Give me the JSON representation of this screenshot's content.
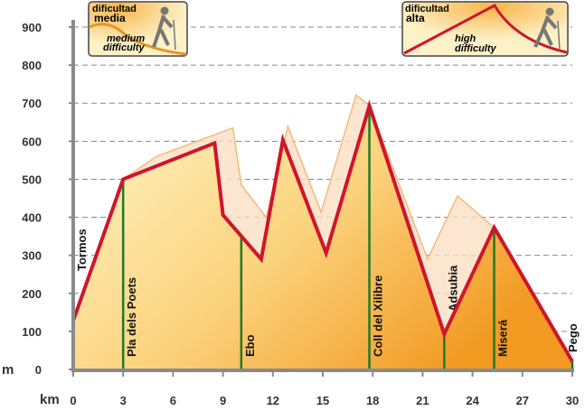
{
  "chart_data": {
    "type": "area",
    "x_unit": "km",
    "y_unit": "m",
    "xlim": [
      0,
      30
    ],
    "ylim": [
      0,
      900
    ],
    "xticks": [
      0,
      3,
      6,
      9,
      12,
      15,
      18,
      21,
      24,
      27,
      30
    ],
    "yticks": [
      0,
      100,
      200,
      300,
      400,
      500,
      600,
      700,
      800,
      900
    ],
    "grid": true,
    "series": [
      {
        "color": "#d0142c",
        "x": [
          0,
          3,
          8.5,
          9,
          11.3,
          12.6,
          15.2,
          17.8,
          22.3,
          25.3,
          30
        ],
        "values": [
          128,
          500,
          595,
          406,
          290,
          603,
          306,
          693,
          93,
          373,
          21
        ]
      },
      {
        "color": "#f5b97a",
        "x": [
          0,
          3,
          5,
          9.6,
          10.1,
          11.6,
          12.9,
          14.9,
          17,
          17.8,
          21.3,
          23.1,
          25.3,
          30
        ],
        "values": [
          128,
          500,
          560,
          635,
          485,
          400,
          639,
          413,
          722,
          693,
          290,
          456,
          373,
          21
        ]
      }
    ],
    "stations": [
      {
        "label": "Tormos",
        "km": 0,
        "elevation": 128
      },
      {
        "label": "Pla dels Poets",
        "km": 3,
        "elevation": 500
      },
      {
        "label": "Ebo",
        "km": 10.1,
        "elevation": 349
      },
      {
        "label": "Coll del Xilibre",
        "km": 17.8,
        "elevation": 693
      },
      {
        "label": "Adsubia",
        "km": 22.3,
        "elevation": 93
      },
      {
        "label": "Miserá",
        "km": 25.3,
        "elevation": 373
      },
      {
        "label": "Pego",
        "km": 30,
        "elevation": 21
      }
    ],
    "badges": [
      {
        "es": "dificultad",
        "es_level": "media",
        "en_level": "medium",
        "en": "difficulty"
      },
      {
        "es": "dificultad",
        "es_level": "alta",
        "en_level": "high",
        "en": "difficulty"
      }
    ]
  }
}
